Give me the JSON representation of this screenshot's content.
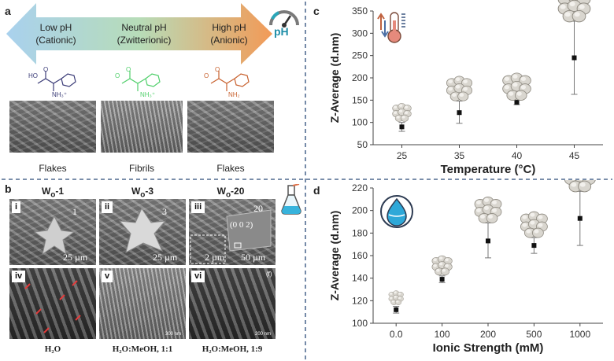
{
  "panel_a": {
    "label": "a",
    "arrow_left": {
      "line1": "Low pH",
      "line2": "(Cationic)"
    },
    "arrow_mid": {
      "line1": "Neutral pH",
      "line2": "(Zwitterionic)"
    },
    "arrow_right": {
      "line1": "High pH",
      "line2": "(Anionic)"
    },
    "ph_icon_text": "pH",
    "mol_left": {
      "ho": "HO",
      "o": "O",
      "nh": "NH₃⁺"
    },
    "mol_mid": {
      "o1": "O",
      "o2": "O",
      "nh": "NH₃⁺"
    },
    "mol_right": {
      "o1": "O",
      "o2": "O",
      "nh": "NH₂"
    },
    "captions": [
      "Flakes",
      "Fibrils",
      "Flakes"
    ],
    "colors": {
      "left": "#a9d1ee",
      "mid": "#b7dcb8",
      "right": "#f29a57"
    }
  },
  "panel_b": {
    "label": "b",
    "titles": [
      {
        "main": "W",
        "sub": "o",
        "suffix": "-1"
      },
      {
        "main": "W",
        "sub": "o",
        "suffix": "-3"
      },
      {
        "main": "W",
        "sub": "o",
        "suffix": "-20"
      }
    ],
    "tags": [
      "i",
      "ii",
      "iii",
      "iv",
      "v",
      "vi"
    ],
    "numbers": [
      "1",
      "3",
      "20"
    ],
    "scales_top": [
      "25 µm",
      "25 µm",
      "50 µm"
    ],
    "inset_scale": "2 µm",
    "miller": "(0 0 2)",
    "bottom_scales": [
      "",
      "300 nm",
      "200 nm"
    ],
    "panel_f": "(f)",
    "solvents": [
      "H₂O",
      "H₂O:MeOH, 1:1",
      "H₂O:MeOH, 1:9"
    ]
  },
  "panel_c": {
    "label": "c",
    "chart_data": {
      "type": "scatter",
      "xlabel": "Temperature (°C)",
      "ylabel": "Z-Average (d.nm)",
      "categories": [
        "25",
        "35",
        "40",
        "45"
      ],
      "values": [
        90,
        122,
        145,
        245
      ],
      "err_low": [
        80,
        98,
        140,
        163
      ],
      "err_high": [
        100,
        148,
        150,
        327
      ],
      "ylim": [
        50,
        350
      ],
      "yticks": [
        50,
        100,
        150,
        200,
        250,
        300,
        350
      ]
    }
  },
  "panel_d": {
    "label": "d",
    "chart_data": {
      "type": "scatter",
      "xlabel": "Ionic Strength (mM)",
      "ylabel": "Z-Average (d.nm)",
      "categories": [
        "0.0",
        "100",
        "200",
        "500",
        "1000"
      ],
      "values": [
        112,
        139,
        173,
        169,
        193
      ],
      "err_low": [
        109,
        136,
        158,
        162,
        169
      ],
      "err_high": [
        115,
        142,
        189,
        176,
        217
      ],
      "ylim": [
        100,
        220
      ],
      "yticks": [
        100,
        120,
        140,
        160,
        180,
        200,
        220
      ]
    }
  }
}
